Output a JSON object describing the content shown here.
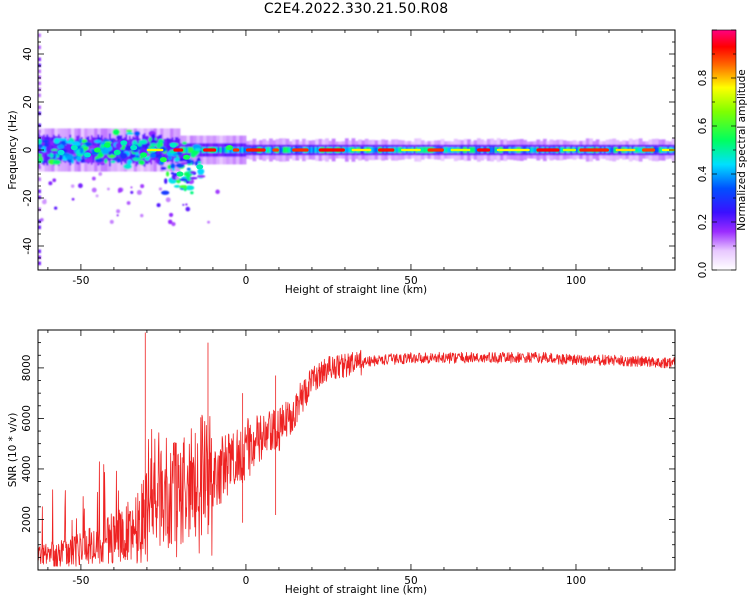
{
  "title": "C2E4.2022.330.21.50.R08",
  "chart_data": [
    {
      "type": "heatmap",
      "name": "spectrogram",
      "xlabel": "Height of straight line (km)",
      "ylabel": "Frequency (Hz)",
      "xlim": [
        -63,
        130
      ],
      "ylim": [
        -50,
        50
      ],
      "xticks": [
        -50,
        0,
        50,
        100
      ],
      "yticks": [
        -40,
        -20,
        0,
        20,
        40
      ],
      "colorbar": {
        "label": "Normalized spectral amplitude",
        "range": [
          0,
          1
        ],
        "ticks": [
          0.0,
          0.2,
          0.4,
          0.6,
          0.8
        ],
        "tick_labels": [
          "0.0",
          "0.2",
          "0.4",
          "0.6",
          "0.8"
        ],
        "colormap": "hsv-rainbow (white, purple, blue, cyan, green, yellow, red, magenta)"
      },
      "description": "Narrow band centered near 0 Hz; wide scatter (about -20 to +8 Hz) below -10 km, stable near-zero line above"
    },
    {
      "type": "line",
      "name": "snr",
      "xlabel": "Height of straight line (km)",
      "ylabel": "SNR (10 * v/v)",
      "xlim": [
        -63,
        130
      ],
      "ylim": [
        0,
        9500
      ],
      "xticks": [
        -50,
        0,
        50,
        100
      ],
      "yticks": [
        2000,
        4000,
        6000,
        8000
      ],
      "color": "#ee2222",
      "envelope": {
        "x": [
          -63,
          -55,
          -45,
          -35,
          -28,
          -20,
          -12,
          -5,
          0,
          5,
          10,
          15,
          20,
          25,
          30,
          35,
          40,
          50,
          60,
          70,
          80,
          90,
          100,
          110,
          120,
          130
        ],
        "y": [
          500,
          700,
          1000,
          1500,
          2500,
          3000,
          3500,
          4200,
          4800,
          5200,
          5500,
          6400,
          7500,
          8000,
          8100,
          8200,
          8300,
          8400,
          8400,
          8400,
          8400,
          8400,
          8300,
          8300,
          8250,
          8200
        ]
      },
      "spikes": [
        {
          "x": -30.5,
          "y": 9400
        },
        {
          "x": -11.5,
          "y": 9000
        },
        {
          "x": -1,
          "y": 7000
        },
        {
          "x": 9,
          "y": 7700
        }
      ]
    }
  ]
}
